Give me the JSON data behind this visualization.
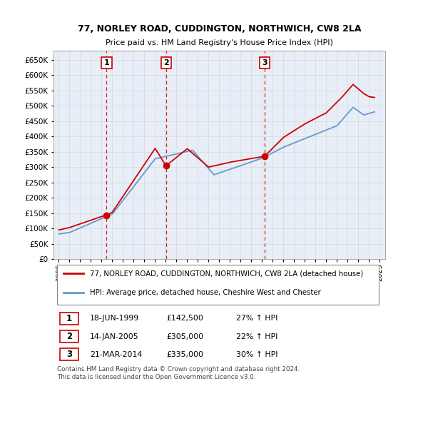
{
  "title": "77, NORLEY ROAD, CUDDINGTON, NORTHWICH, CW8 2LA",
  "subtitle": "Price paid vs. HM Land Registry's House Price Index (HPI)",
  "ylim": [
    0,
    680000
  ],
  "yticks": [
    0,
    50000,
    100000,
    150000,
    200000,
    250000,
    300000,
    350000,
    400000,
    450000,
    500000,
    550000,
    600000,
    650000
  ],
  "xlim_start": 1994.5,
  "xlim_end": 2025.5,
  "transaction_color": "#cc0000",
  "hpi_color": "#6699cc",
  "vline_color": "#cc0000",
  "grid_color": "#dddddd",
  "bg_color": "#e8eef8",
  "legend_label_red": "77, NORLEY ROAD, CUDDINGTON, NORTHWICH, CW8 2LA (detached house)",
  "legend_label_blue": "HPI: Average price, detached house, Cheshire West and Chester",
  "transactions": [
    {
      "year": 1999.46,
      "price": 142500,
      "label": "1"
    },
    {
      "year": 2005.04,
      "price": 305000,
      "label": "2"
    },
    {
      "year": 2014.22,
      "price": 335000,
      "label": "3"
    }
  ],
  "footnote1": "Contains HM Land Registry data © Crown copyright and database right 2024.",
  "footnote2": "This data is licensed under the Open Government Licence v3.0.",
  "table_rows": [
    {
      "num": "1",
      "date": "18-JUN-1999",
      "price": "£142,500",
      "change": "27% ↑ HPI"
    },
    {
      "num": "2",
      "date": "14-JAN-2005",
      "price": "£305,000",
      "change": "22% ↑ HPI"
    },
    {
      "num": "3",
      "date": "21-MAR-2014",
      "price": "£335,000",
      "change": "30% ↑ HPI"
    }
  ]
}
